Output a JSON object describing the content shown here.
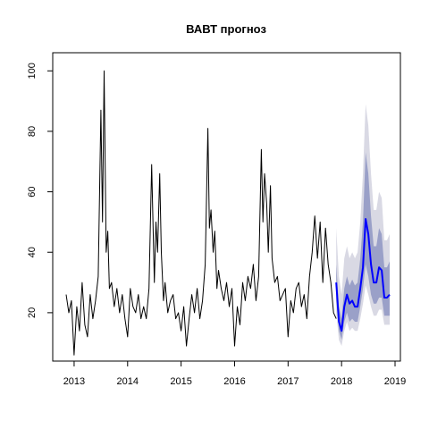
{
  "chart_data": {
    "type": "line",
    "title": "ВАВТ прогноз",
    "xlabel": "",
    "ylabel": "",
    "xlim": [
      2012.6,
      2019.1
    ],
    "ylim": [
      4,
      106
    ],
    "x_ticks": [
      2013,
      2014,
      2015,
      2016,
      2017,
      2018,
      2019
    ],
    "x_tick_labels": [
      "2013",
      "2014",
      "2015",
      "2016",
      "2017",
      "2018",
      "2019"
    ],
    "y_ticks": [
      20,
      40,
      60,
      80,
      100
    ],
    "y_tick_labels": [
      "20",
      "40",
      "60",
      "80",
      "100"
    ],
    "grid": false,
    "legend": "none",
    "colors": {
      "history": "#000000",
      "forecast": "#0000ff",
      "band80": "#9aa0c8",
      "band95": "#d9d9e4"
    },
    "history": {
      "x": [
        2012.85,
        2012.9,
        2012.95,
        2013.0,
        2013.05,
        2013.1,
        2013.15,
        2013.2,
        2013.25,
        2013.3,
        2013.35,
        2013.4,
        2013.45,
        2013.5,
        2013.53,
        2013.56,
        2013.6,
        2013.63,
        2013.66,
        2013.7,
        2013.75,
        2013.8,
        2013.85,
        2013.9,
        2013.95,
        2014.0,
        2014.05,
        2014.1,
        2014.15,
        2014.2,
        2014.25,
        2014.3,
        2014.35,
        2014.4,
        2014.45,
        2014.5,
        2014.53,
        2014.56,
        2014.6,
        2014.63,
        2014.67,
        2014.7,
        2014.75,
        2014.8,
        2014.85,
        2014.9,
        2014.95,
        2015.0,
        2015.05,
        2015.1,
        2015.15,
        2015.2,
        2015.25,
        2015.3,
        2015.35,
        2015.4,
        2015.45,
        2015.5,
        2015.53,
        2015.56,
        2015.6,
        2015.63,
        2015.67,
        2015.7,
        2015.75,
        2015.8,
        2015.85,
        2015.9,
        2015.95,
        2016.0,
        2016.05,
        2016.1,
        2016.15,
        2016.2,
        2016.25,
        2016.3,
        2016.35,
        2016.4,
        2016.45,
        2016.5,
        2016.53,
        2016.56,
        2016.6,
        2016.63,
        2016.67,
        2016.7,
        2016.75,
        2016.8,
        2016.85,
        2016.9,
        2016.95,
        2017.0,
        2017.05,
        2017.1,
        2017.15,
        2017.2,
        2017.25,
        2017.3,
        2017.35,
        2017.4,
        2017.45,
        2017.5,
        2017.55,
        2017.6,
        2017.65,
        2017.7,
        2017.75,
        2017.8,
        2017.85,
        2017.9
      ],
      "y": [
        26,
        20,
        24,
        6,
        22,
        14,
        30,
        16,
        12,
        26,
        18,
        24,
        32,
        87,
        50,
        100,
        40,
        47,
        28,
        30,
        22,
        28,
        20,
        26,
        18,
        12,
        28,
        22,
        20,
        26,
        18,
        22,
        18,
        28,
        69,
        30,
        50,
        40,
        66,
        40,
        24,
        30,
        20,
        24,
        26,
        18,
        20,
        14,
        22,
        9,
        18,
        26,
        20,
        28,
        18,
        24,
        36,
        81,
        48,
        54,
        40,
        47,
        28,
        34,
        28,
        24,
        30,
        22,
        28,
        9,
        22,
        16,
        30,
        24,
        32,
        28,
        36,
        24,
        32,
        74,
        50,
        66,
        56,
        40,
        62,
        38,
        30,
        32,
        24,
        26,
        28,
        12,
        24,
        20,
        28,
        30,
        22,
        26,
        18,
        32,
        40,
        52,
        38,
        50,
        30,
        48,
        36,
        30,
        20,
        18
      ]
    },
    "forecast": {
      "x": [
        2017.9,
        2017.95,
        2018.0,
        2018.05,
        2018.1,
        2018.15,
        2018.2,
        2018.25,
        2018.3,
        2018.35,
        2018.4,
        2018.45,
        2018.5,
        2018.55,
        2018.6,
        2018.65,
        2018.7,
        2018.75,
        2018.8,
        2018.85,
        2018.9
      ],
      "y": [
        30,
        17,
        14,
        22,
        26,
        23,
        24,
        22,
        22,
        28,
        35,
        51,
        46,
        36,
        30,
        30,
        35,
        34,
        25,
        25,
        26
      ],
      "lo80": [
        24,
        14,
        11,
        17,
        20,
        17,
        18,
        17,
        17,
        22,
        28,
        36,
        32,
        26,
        23,
        23,
        25,
        25,
        19,
        19,
        19
      ],
      "hi80": [
        36,
        22,
        18,
        28,
        32,
        29,
        31,
        29,
        30,
        38,
        50,
        73,
        66,
        52,
        42,
        42,
        48,
        46,
        35,
        35,
        37
      ],
      "lo95": [
        20,
        11,
        9,
        14,
        17,
        14,
        15,
        14,
        14,
        18,
        23,
        29,
        26,
        22,
        19,
        19,
        21,
        21,
        16,
        16,
        16
      ],
      "hi95": [
        48,
        32,
        26,
        38,
        42,
        38,
        40,
        38,
        40,
        50,
        66,
        89,
        82,
        66,
        54,
        54,
        60,
        58,
        44,
        44,
        46
      ]
    }
  }
}
